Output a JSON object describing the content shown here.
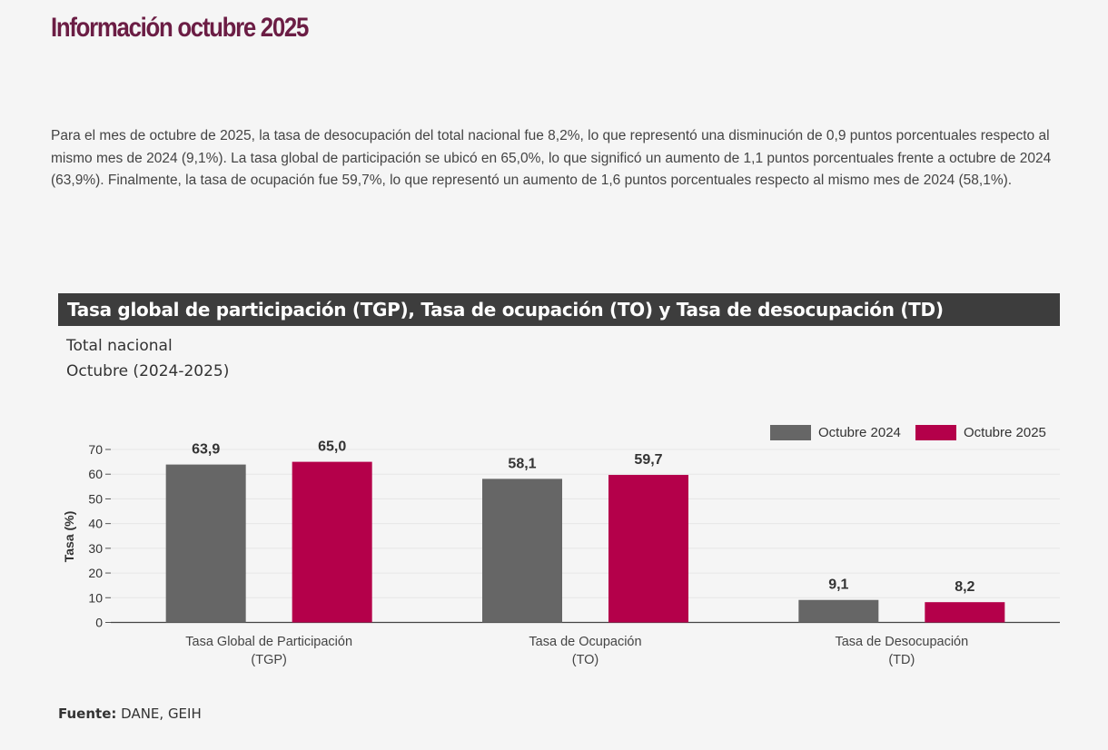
{
  "page": {
    "title": "Información octubre 2025",
    "intro": "Para el mes de octubre de 2025, la tasa de desocupación del total nacional fue 8,2%, lo que representó una disminución de 0,9 puntos porcentuales respecto al mismo mes de 2024 (9,1%). La tasa global de participación se ubicó en 65,0%, lo que significó un aumento de 1,1 puntos porcentuales frente a octubre de 2024 (63,9%). Finalmente, la tasa de ocupación fue 59,7%, lo que representó un aumento de 1,6 puntos porcentuales respecto al mismo mes de 2024 (58,1%).",
    "chart_header": "Tasa global de participación (TGP), Tasa de ocupación (TO) y Tasa de desocupación (TD)",
    "subtitle_line1": "Total nacional",
    "subtitle_line2": "Octubre (2024-2025)",
    "source_label": "Fuente:",
    "source_text": "DANE, GEIH"
  },
  "chart_data": {
    "type": "bar",
    "categories": [
      [
        "Tasa Global de Participación",
        "(TGP)"
      ],
      [
        "Tasa de Ocupación",
        "(TO)"
      ],
      [
        "Tasa de Desocupación",
        "(TD)"
      ]
    ],
    "series": [
      {
        "name": "Octubre 2024",
        "color": "#666666",
        "values": [
          63.9,
          58.1,
          9.1
        ],
        "labels": [
          "63,9",
          "58,1",
          "9,1"
        ]
      },
      {
        "name": "Octubre 2025",
        "color": "#b4004a",
        "values": [
          65.0,
          59.7,
          8.2
        ],
        "labels": [
          "65,0",
          "59,7",
          "8,2"
        ]
      }
    ],
    "ylabel": "Tasa (%)",
    "ylim": [
      0,
      70
    ],
    "yticks": [
      0,
      10,
      20,
      30,
      40,
      50,
      60,
      70
    ],
    "grid": true,
    "legend_position": "top-right"
  }
}
